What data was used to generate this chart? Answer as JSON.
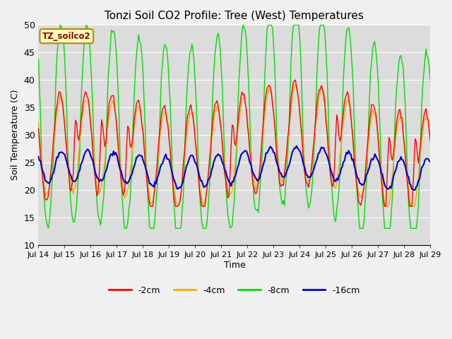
{
  "title": "Tonzi Soil CO2 Profile: Tree (West) Temperatures",
  "xlabel": "Time",
  "ylabel": "Soil Temperature (C)",
  "ylim": [
    10,
    50
  ],
  "xlim": [
    0,
    360
  ],
  "bg_color": "#dcdcdc",
  "fig_bg_color": "#f0f0f0",
  "colors": {
    "-2cm": "#ff0000",
    "-4cm": "#ffa500",
    "-8cm": "#00dd00",
    "-16cm": "#0000cc"
  },
  "legend_label": "TZ_soilco2",
  "xtick_labels": [
    "Jul 14",
    "Jul 15",
    "Jul 16",
    "Jul 17",
    "Jul 18",
    "Jul 19",
    "Jul 20",
    "Jul 21",
    "Jul 22",
    "Jul 23",
    "Jul 24",
    "Jul 25",
    "Jul 26",
    "Jul 27",
    "Jul 28",
    "Jul 29"
  ],
  "xtick_positions": [
    0,
    24,
    48,
    72,
    96,
    120,
    144,
    168,
    192,
    216,
    240,
    264,
    288,
    312,
    336,
    360
  ],
  "ytick_positions": [
    10,
    15,
    20,
    25,
    30,
    35,
    40,
    45,
    50
  ],
  "grid_color": "#ffffff",
  "total_hours": 361,
  "figsize": [
    6.4,
    4.8
  ],
  "dpi": 100
}
